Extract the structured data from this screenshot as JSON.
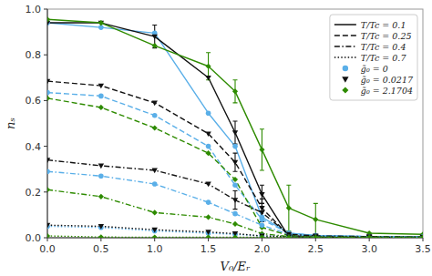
{
  "chart_data": {
    "type": "line",
    "xlabel": "V₀/Eᵣ",
    "ylabel": "nₛ",
    "x": [
      0.0,
      0.5,
      1.0,
      1.5,
      1.75,
      2.0,
      2.25,
      2.5,
      3.0,
      3.5
    ],
    "xlim": [
      0.0,
      3.5
    ],
    "ylim": [
      0.0,
      1.0
    ],
    "xticks": [
      {
        "value": 0.0,
        "label": "0.0"
      },
      0.5,
      {
        "value": 1.0,
        "label": "1.0"
      },
      1.5,
      {
        "value": 2.0,
        "label": "2.0"
      },
      2.5,
      {
        "value": 3.0,
        "label": "3.0"
      },
      3.5
    ],
    "yticks": [
      {
        "value": 0.0,
        "label": "0.0"
      },
      0.2,
      0.4,
      0.6,
      0.8,
      {
        "value": 1.0,
        "label": "1.0"
      }
    ],
    "grid": false,
    "legend": "upper right",
    "legend_entries": [
      {
        "name": "T/Tc = 0.1",
        "color": "#111111",
        "line_style": "solid"
      },
      {
        "name": "T/Tc = 0.25",
        "color": "#111111",
        "line_style": "dashed"
      },
      {
        "name": "T/Tc = 0.4",
        "color": "#111111",
        "line_style": "dashdot"
      },
      {
        "name": "T/Tc = 0.7",
        "color": "#111111",
        "line_style": "dotted"
      },
      {
        "name": "g̃₀ = 0",
        "color": "#5aafe8",
        "marker": "circle"
      },
      {
        "name": "g̃₀ = 0.0217",
        "color": "#111111",
        "marker": "triangle-down"
      },
      {
        "name": "g̃₀ = 2.1704",
        "color": "#2e8b00",
        "marker": "diamond"
      }
    ],
    "series": [
      {
        "color": "#5aafe8",
        "marker": "circle",
        "line_style": "solid",
        "values": [
          0.94,
          0.92,
          0.895,
          0.545,
          0.4,
          0.09,
          0.02,
          0.01,
          0.005,
          0.005
        ]
      },
      {
        "color": "#111111",
        "marker": "triangle-down",
        "line_style": "solid",
        "values": [
          0.94,
          0.94,
          0.88,
          0.7,
          0.46,
          0.19,
          0.005,
          0.003,
          0.002,
          0.002
        ],
        "errors": [
          null,
          null,
          0.05,
          null,
          0.05,
          0.04,
          null,
          null,
          null,
          null
        ]
      },
      {
        "color": "#2e8b00",
        "marker": "diamond",
        "line_style": "solid",
        "values": [
          0.955,
          0.94,
          0.84,
          0.75,
          0.64,
          0.385,
          0.13,
          0.08,
          0.02,
          0.015
        ],
        "errors": [
          null,
          null,
          null,
          0.06,
          0.05,
          0.09,
          0.1,
          0.07,
          null,
          null
        ]
      },
      {
        "color": "#5aafe8",
        "marker": "circle",
        "line_style": "dashed",
        "values": [
          0.635,
          0.62,
          0.535,
          0.4,
          0.23,
          0.08,
          0.02,
          0.01,
          0.005,
          0.005
        ]
      },
      {
        "color": "#111111",
        "marker": "triangle-down",
        "line_style": "dashed",
        "values": [
          0.685,
          0.665,
          0.59,
          0.455,
          0.33,
          0.13,
          0.01,
          0.005,
          0.003,
          0.002
        ],
        "errors": [
          null,
          null,
          null,
          null,
          0.04,
          0.04,
          null,
          null,
          null,
          null
        ]
      },
      {
        "color": "#2e8b00",
        "marker": "diamond",
        "line_style": "dashed",
        "values": [
          0.61,
          0.57,
          0.48,
          0.37,
          0.255,
          0.045,
          0.01,
          0.005,
          0.003,
          0.002
        ]
      },
      {
        "color": "#5aafe8",
        "marker": "circle",
        "line_style": "dashdot",
        "values": [
          0.29,
          0.27,
          0.235,
          0.155,
          0.105,
          0.055,
          0.015,
          0.008,
          0.005,
          0.003
        ]
      },
      {
        "color": "#111111",
        "marker": "triangle-down",
        "line_style": "dashdot",
        "values": [
          0.34,
          0.315,
          0.295,
          0.235,
          0.165,
          0.11,
          0.015,
          0.008,
          0.005,
          0.003
        ],
        "errors": [
          null,
          null,
          null,
          null,
          0.04,
          0.04,
          null,
          null,
          null,
          null
        ]
      },
      {
        "color": "#2e8b00",
        "marker": "diamond",
        "line_style": "dashdot",
        "values": [
          0.21,
          0.18,
          0.11,
          0.09,
          0.06,
          0.018,
          0.005,
          0.003,
          0.002,
          0.002
        ]
      },
      {
        "color": "#5aafe8",
        "marker": "circle",
        "line_style": "dotted",
        "values": [
          0.05,
          0.045,
          0.03,
          0.02,
          0.015,
          0.008,
          0.005,
          0.003,
          0.002,
          0.002
        ]
      },
      {
        "color": "#111111",
        "marker": "triangle-down",
        "line_style": "dotted",
        "values": [
          0.055,
          0.05,
          0.035,
          0.025,
          0.018,
          0.008,
          0.005,
          0.003,
          0.002,
          0.002
        ]
      },
      {
        "color": "#2e8b00",
        "marker": "diamond",
        "line_style": "dotted",
        "values": [
          0.008,
          0.003,
          0.002,
          0.002,
          0.002,
          0.002,
          0.002,
          0.002,
          0.002,
          0.002
        ]
      }
    ]
  }
}
